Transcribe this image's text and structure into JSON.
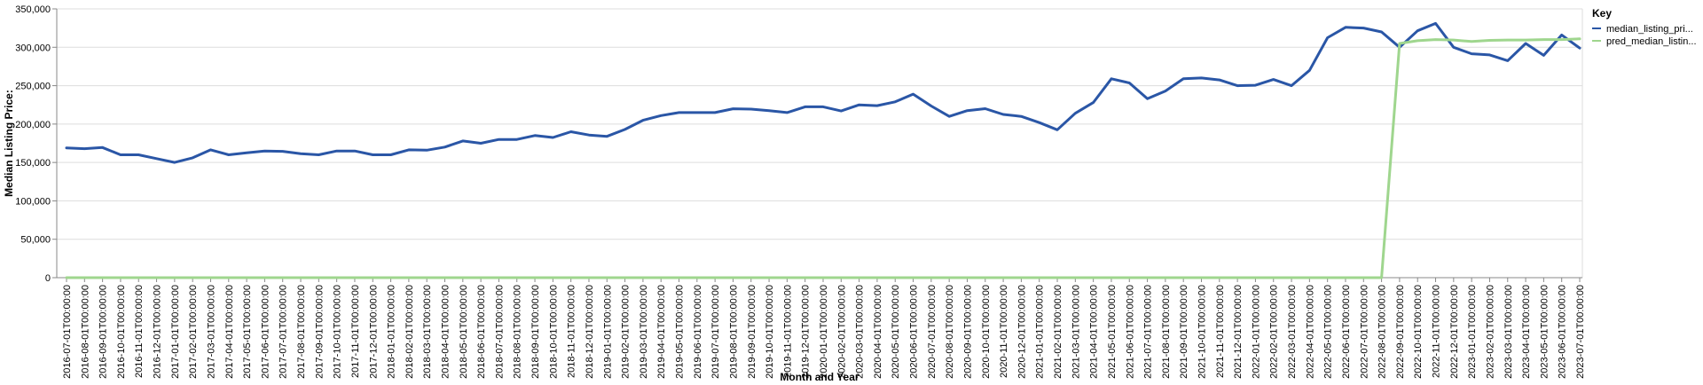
{
  "chart_data": {
    "type": "line",
    "xlabel": "Month and Year",
    "ylabel": "Median Listing Price:",
    "ylim": [
      0,
      350000
    ],
    "yticks": [
      "0",
      "50,000",
      "100,000",
      "150,000",
      "200,000",
      "250,000",
      "300,000",
      "350,000"
    ],
    "grid": true,
    "legend": {
      "title": "Key",
      "position": "top-right"
    },
    "x": [
      "2016-07-01T00:00:00",
      "2016-08-01T00:00:00",
      "2016-09-01T00:00:00",
      "2016-10-01T00:00:00",
      "2016-11-01T00:00:00",
      "2016-12-01T00:00:00",
      "2017-01-01T00:00:00",
      "2017-02-01T00:00:00",
      "2017-03-01T00:00:00",
      "2017-04-01T00:00:00",
      "2017-05-01T00:00:00",
      "2017-06-01T00:00:00",
      "2017-07-01T00:00:00",
      "2017-08-01T00:00:00",
      "2017-09-01T00:00:00",
      "2017-10-01T00:00:00",
      "2017-11-01T00:00:00",
      "2017-12-01T00:00:00",
      "2018-01-01T00:00:00",
      "2018-02-01T00:00:00",
      "2018-03-01T00:00:00",
      "2018-04-01T00:00:00",
      "2018-05-01T00:00:00",
      "2018-06-01T00:00:00",
      "2018-07-01T00:00:00",
      "2018-08-01T00:00:00",
      "2018-09-01T00:00:00",
      "2018-10-01T00:00:00",
      "2018-11-01T00:00:00",
      "2018-12-01T00:00:00",
      "2019-01-01T00:00:00",
      "2019-02-01T00:00:00",
      "2019-03-01T00:00:00",
      "2019-04-01T00:00:00",
      "2019-05-01T00:00:00",
      "2019-06-01T00:00:00",
      "2019-07-01T00:00:00",
      "2019-08-01T00:00:00",
      "2019-09-01T00:00:00",
      "2019-10-01T00:00:00",
      "2019-11-01T00:00:00",
      "2019-12-01T00:00:00",
      "2020-01-01T00:00:00",
      "2020-02-01T00:00:00",
      "2020-03-01T00:00:00",
      "2020-04-01T00:00:00",
      "2020-05-01T00:00:00",
      "2020-06-01T00:00:00",
      "2020-07-01T00:00:00",
      "2020-08-01T00:00:00",
      "2020-09-01T00:00:00",
      "2020-10-01T00:00:00",
      "2020-11-01T00:00:00",
      "2020-12-01T00:00:00",
      "2021-01-01T00:00:00",
      "2021-02-01T00:00:00",
      "2021-03-01T00:00:00",
      "2021-04-01T00:00:00",
      "2021-05-01T00:00:00",
      "2021-06-01T00:00:00",
      "2021-07-01T00:00:00",
      "2021-08-01T00:00:00",
      "2021-09-01T00:00:00",
      "2021-10-01T00:00:00",
      "2021-11-01T00:00:00",
      "2021-12-01T00:00:00",
      "2022-01-01T00:00:00",
      "2022-02-01T00:00:00",
      "2022-03-01T00:00:00",
      "2022-04-01T00:00:00",
      "2022-05-01T00:00:00",
      "2022-06-01T00:00:00",
      "2022-07-01T00:00:00",
      "2022-08-01T00:00:00",
      "2022-09-01T00:00:00",
      "2022-10-01T00:00:00",
      "2022-11-01T00:00:00",
      "2022-12-01T00:00:00",
      "2023-01-01T00:00:00",
      "2023-02-01T00:00:00",
      "2023-03-01T00:00:00",
      "2023-04-01T00:00:00",
      "2023-05-01T00:00:00",
      "2023-06-01T00:00:00",
      "2023-07-01T00:00:00"
    ],
    "series": [
      {
        "name": "median_listing_pri...",
        "color": "#2a56a6",
        "values": [
          169000,
          168000,
          169500,
          160000,
          160000,
          155000,
          150000,
          156000,
          166500,
          160000,
          162500,
          165000,
          164500,
          161500,
          160000,
          165000,
          165000,
          160000,
          160000,
          166500,
          166000,
          170000,
          178000,
          175000,
          180000,
          180000,
          185000,
          182500,
          190000,
          185700,
          184000,
          193000,
          204900,
          211000,
          215000,
          215000,
          215000,
          219900,
          219500,
          217500,
          215000,
          222500,
          222500,
          217000,
          225000,
          224000,
          229000,
          239000,
          223500,
          210000,
          217500,
          220000,
          212500,
          210000,
          201900,
          192500,
          214000,
          228000,
          259000,
          253500,
          233000,
          243000,
          259000,
          260000,
          257500,
          250000,
          250500,
          258000,
          250000,
          270000,
          312500,
          326000,
          325000,
          320000,
          300000,
          321500,
          331000,
          300000,
          291500,
          290000,
          282500,
          305000,
          289500,
          316000,
          299000
        ]
      },
      {
        "name": "pred_median_listin...",
        "color": "#9fd68e",
        "values": [
          0,
          0,
          0,
          0,
          0,
          0,
          0,
          0,
          0,
          0,
          0,
          0,
          0,
          0,
          0,
          0,
          0,
          0,
          0,
          0,
          0,
          0,
          0,
          0,
          0,
          0,
          0,
          0,
          0,
          0,
          0,
          0,
          0,
          0,
          0,
          0,
          0,
          0,
          0,
          0,
          0,
          0,
          0,
          0,
          0,
          0,
          0,
          0,
          0,
          0,
          0,
          0,
          0,
          0,
          0,
          0,
          0,
          0,
          0,
          0,
          0,
          0,
          0,
          0,
          0,
          0,
          0,
          0,
          0,
          0,
          0,
          0,
          0,
          0,
          305000,
          308500,
          310000,
          309500,
          307500,
          309000,
          309500,
          309500,
          310000,
          310000,
          311000
        ]
      }
    ]
  }
}
